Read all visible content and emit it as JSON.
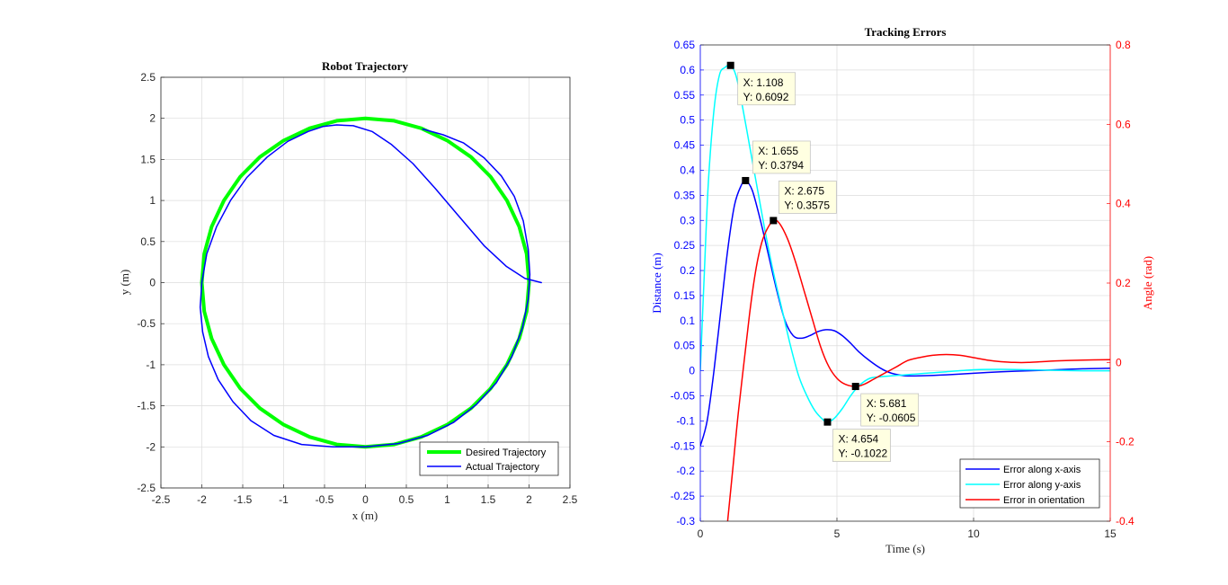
{
  "chart_data": [
    {
      "type": "line",
      "title": "Robot Trajectory",
      "xlabel": "x (m)",
      "ylabel": "y (m)",
      "xlim": [
        -2.5,
        2.5
      ],
      "ylim": [
        -2.5,
        2.5
      ],
      "xticks": [
        "-2.5",
        "-2",
        "-1.5",
        "-1",
        "-0.5",
        "0",
        "0.5",
        "1",
        "1.5",
        "2",
        "2.5"
      ],
      "yticks": [
        "-2.5",
        "-2",
        "-1.5",
        "-1",
        "-0.5",
        "0",
        "0.5",
        "1",
        "1.5",
        "2",
        "2.5"
      ],
      "grid": true,
      "legend": "bottom-right",
      "series": [
        {
          "name": "Desired Trajectory",
          "color": "#00ff00",
          "description_shape": "circle radius 2 centered at origin",
          "x": [
            2.0,
            1.97,
            1.88,
            1.73,
            1.53,
            1.29,
            1.0,
            0.68,
            0.35,
            0.0,
            -0.35,
            -0.68,
            -1.0,
            -1.29,
            -1.53,
            -1.73,
            -1.88,
            -1.97,
            -2.0,
            -1.97,
            -1.88,
            -1.73,
            -1.53,
            -1.29,
            -1.0,
            -0.68,
            -0.35,
            0.0,
            0.35,
            0.68,
            1.0,
            1.29,
            1.53,
            1.73,
            1.88,
            1.97,
            2.0
          ],
          "y": [
            0.0,
            0.35,
            0.68,
            1.0,
            1.29,
            1.53,
            1.73,
            1.88,
            1.97,
            2.0,
            1.97,
            1.88,
            1.73,
            1.53,
            1.29,
            1.0,
            0.68,
            0.35,
            0.0,
            -0.35,
            -0.68,
            -1.0,
            -1.29,
            -1.53,
            -1.73,
            -1.88,
            -1.97,
            -2.0,
            -1.97,
            -1.88,
            -1.73,
            -1.53,
            -1.29,
            -1.0,
            -0.68,
            -0.35,
            0.0
          ]
        },
        {
          "name": "Actual Trajectory",
          "color": "#0000ff",
          "x": [
            2.15,
            1.95,
            1.72,
            1.45,
            1.15,
            0.85,
            0.58,
            0.32,
            0.08,
            -0.15,
            -0.35,
            -0.52,
            -0.7,
            -0.95,
            -1.2,
            -1.45,
            -1.65,
            -1.82,
            -1.94,
            -2.0,
            -2.02,
            -1.99,
            -1.92,
            -1.8,
            -1.62,
            -1.4,
            -1.12,
            -0.78,
            -0.4,
            0.0,
            0.4,
            0.76,
            1.08,
            1.36,
            1.6,
            1.79,
            1.92,
            1.99,
            2.01,
            1.99,
            1.93,
            1.82,
            1.66,
            1.45,
            1.2,
            0.95,
            0.7
          ],
          "y": [
            0.0,
            0.05,
            0.2,
            0.45,
            0.8,
            1.15,
            1.45,
            1.68,
            1.84,
            1.91,
            1.92,
            1.9,
            1.84,
            1.72,
            1.53,
            1.28,
            1.0,
            0.68,
            0.35,
            0.0,
            -0.3,
            -0.6,
            -0.9,
            -1.18,
            -1.45,
            -1.68,
            -1.86,
            -1.97,
            -2.0,
            -2.0,
            -1.96,
            -1.86,
            -1.7,
            -1.48,
            -1.22,
            -0.9,
            -0.55,
            -0.2,
            0.1,
            0.4,
            0.75,
            1.05,
            1.3,
            1.52,
            1.7,
            1.8,
            1.87
          ]
        }
      ]
    },
    {
      "type": "line",
      "title": "Tracking Errors",
      "xlabel": "Time (s)",
      "ylabel": "Distance (m)",
      "ylabel_right": "Angle (rad)",
      "xlim": [
        0,
        15
      ],
      "ylim": [
        -0.3,
        0.65
      ],
      "ylim_right": [
        -0.4,
        0.8
      ],
      "xticks": [
        "0",
        "5",
        "10",
        "15"
      ],
      "yticks": [
        "-0.3",
        "-0.25",
        "-0.2",
        "-0.15",
        "-0.1",
        "-0.05",
        "0",
        "0.05",
        "0.1",
        "0.15",
        "0.2",
        "0.25",
        "0.3",
        "0.35",
        "0.4",
        "0.45",
        "0.5",
        "0.55",
        "0.6",
        "0.65"
      ],
      "yticks_right": [
        "-0.4",
        "-0.2",
        "0",
        "0.2",
        "0.4",
        "0.6",
        "0.8"
      ],
      "grid": true,
      "legend": "bottom-right",
      "left_axis_color": "#0000ff",
      "right_axis_color": "#ff0000",
      "series": [
        {
          "name": "Error along x-axis",
          "color": "#0000ff",
          "axis": "left",
          "x": [
            0,
            0.25,
            0.5,
            0.75,
            1.0,
            1.25,
            1.5,
            1.655,
            1.9,
            2.2,
            2.5,
            2.8,
            3.1,
            3.4,
            3.7,
            4.0,
            4.3,
            4.6,
            4.9,
            5.2,
            5.5,
            5.8,
            6.2,
            6.6,
            7.0,
            7.5,
            8.0,
            9.0,
            10.0,
            11.0,
            12.0,
            13.0,
            14.0,
            15.0
          ],
          "y": [
            -0.15,
            -0.1,
            0.0,
            0.12,
            0.24,
            0.33,
            0.37,
            0.3794,
            0.36,
            0.3,
            0.23,
            0.16,
            0.1,
            0.07,
            0.065,
            0.07,
            0.078,
            0.082,
            0.08,
            0.07,
            0.055,
            0.038,
            0.02,
            0.005,
            -0.005,
            -0.01,
            -0.01,
            -0.008,
            -0.005,
            -0.002,
            0.0,
            0.002,
            0.004,
            0.005
          ]
        },
        {
          "name": "Error along y-axis",
          "color": "#00ffff",
          "axis": "left",
          "x": [
            0,
            0.15,
            0.3,
            0.5,
            0.7,
            0.9,
            1.108,
            1.3,
            1.5,
            1.8,
            2.1,
            2.4,
            2.7,
            3.0,
            3.3,
            3.6,
            3.9,
            4.2,
            4.5,
            4.654,
            4.9,
            5.2,
            5.5,
            5.8,
            6.2,
            6.6,
            7.0,
            7.5,
            8.0,
            8.5,
            9.0,
            10.0,
            11.0,
            12.0,
            13.0,
            14.0,
            15.0
          ],
          "y": [
            0.0,
            0.2,
            0.38,
            0.52,
            0.59,
            0.605,
            0.6092,
            0.59,
            0.54,
            0.45,
            0.36,
            0.27,
            0.19,
            0.12,
            0.05,
            -0.01,
            -0.05,
            -0.08,
            -0.098,
            -0.1022,
            -0.095,
            -0.075,
            -0.05,
            -0.03,
            -0.015,
            -0.012,
            -0.01,
            -0.008,
            -0.006,
            -0.004,
            -0.002,
            0.002,
            0.003,
            0.002,
            0.001,
            0.0,
            0.0
          ]
        },
        {
          "name": "Error in orientation",
          "color": "#ff0000",
          "axis": "right",
          "x": [
            1.0,
            1.2,
            1.4,
            1.6,
            1.8,
            2.0,
            2.2,
            2.4,
            2.675,
            2.9,
            3.2,
            3.5,
            3.8,
            4.1,
            4.4,
            4.7,
            5.0,
            5.3,
            5.681,
            6.0,
            6.4,
            6.8,
            7.2,
            7.6,
            8.0,
            8.5,
            9.0,
            9.5,
            10.0,
            10.5,
            11.0,
            11.5,
            12.0,
            12.5,
            13.0,
            14.0,
            15.0
          ],
          "y": [
            -0.4,
            -0.26,
            -0.12,
            0.0,
            0.12,
            0.22,
            0.29,
            0.33,
            0.3575,
            0.35,
            0.31,
            0.25,
            0.18,
            0.11,
            0.04,
            -0.01,
            -0.04,
            -0.055,
            -0.0605,
            -0.055,
            -0.04,
            -0.025,
            -0.01,
            0.005,
            0.012,
            0.018,
            0.02,
            0.018,
            0.012,
            0.006,
            0.002,
            0.0,
            0.0,
            0.002,
            0.004,
            0.006,
            0.007
          ]
        }
      ],
      "annotations": [
        {
          "axis": "left",
          "x": 1.108,
          "y": 0.6092,
          "label_x": "X: 1.108",
          "label_y": "Y: 0.6092"
        },
        {
          "axis": "left",
          "x": 1.655,
          "y": 0.3794,
          "label_x": "X: 1.655",
          "label_y": "Y: 0.3794"
        },
        {
          "axis": "right",
          "x": 2.675,
          "y": 0.3575,
          "label_x": "X: 2.675",
          "label_y": "Y: 0.3575"
        },
        {
          "axis": "right",
          "x": 5.681,
          "y": -0.0605,
          "label_x": "X: 5.681",
          "label_y": "Y: -0.0605"
        },
        {
          "axis": "left",
          "x": 4.654,
          "y": -0.1022,
          "label_x": "X: 4.654",
          "label_y": "Y: -0.1022"
        }
      ]
    }
  ]
}
